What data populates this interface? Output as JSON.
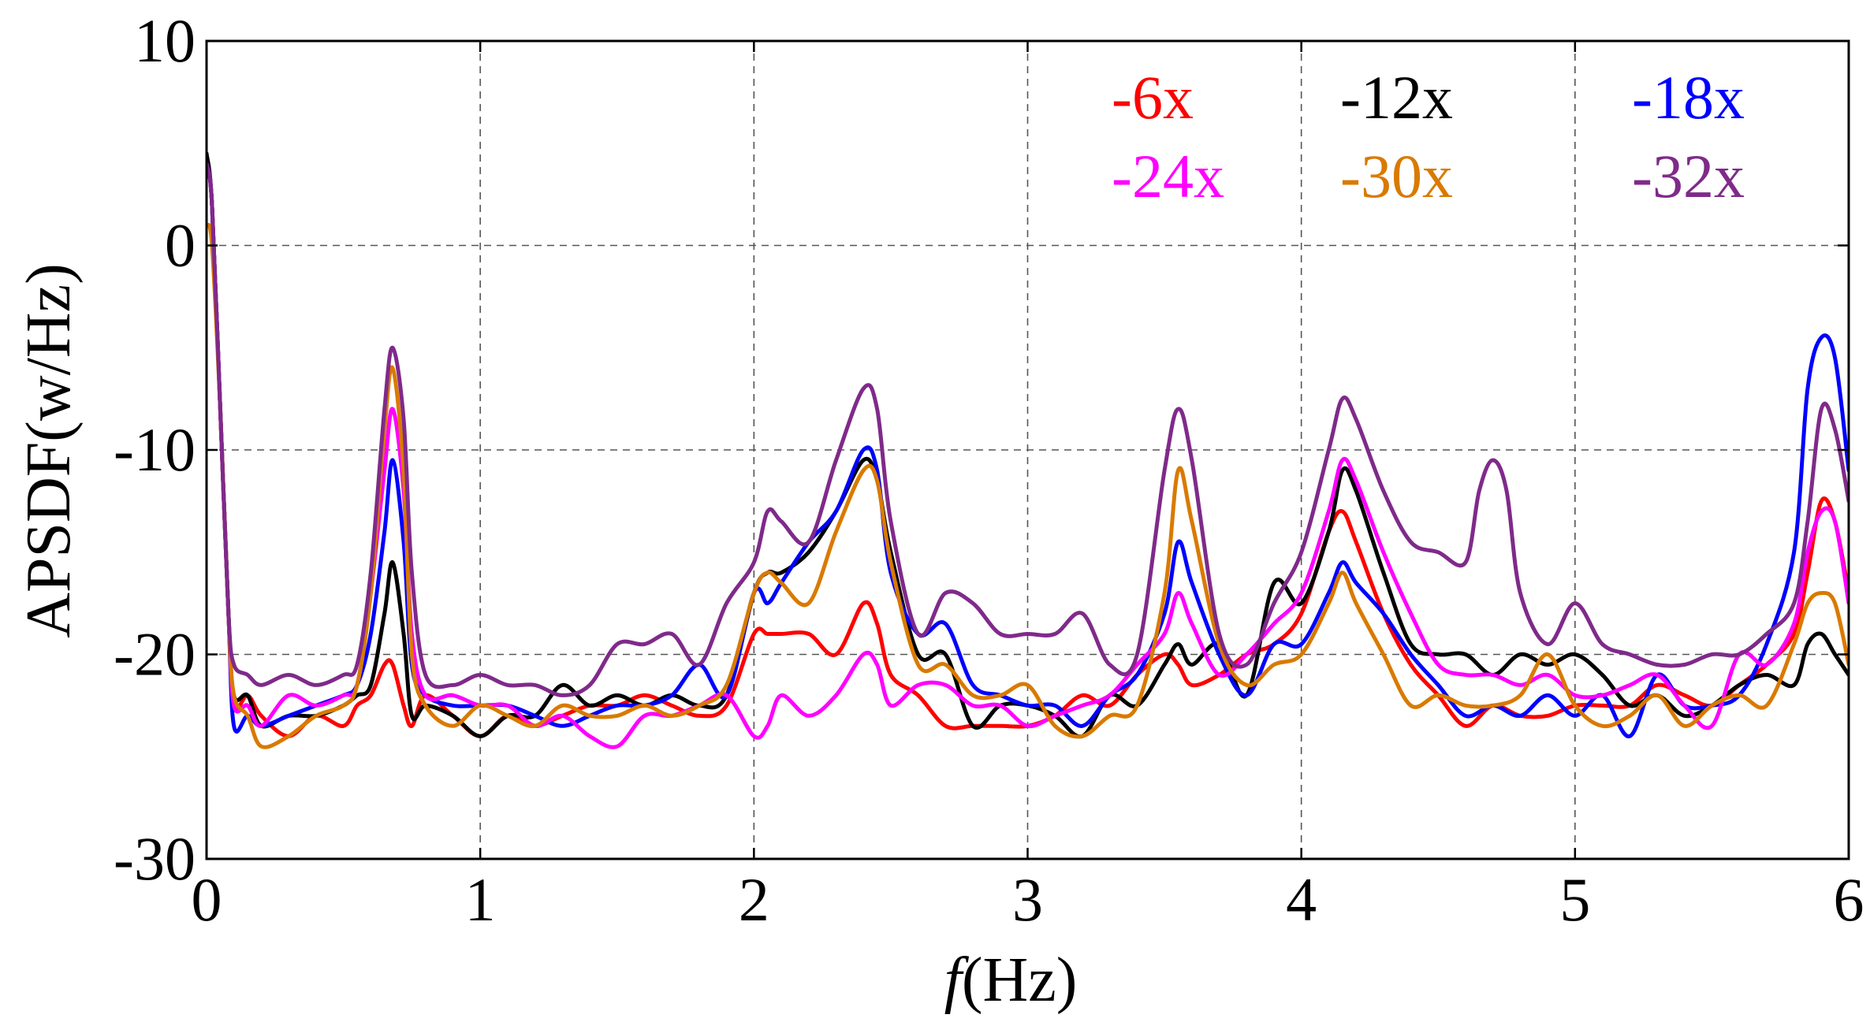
{
  "chart_data": {
    "type": "line",
    "title": "",
    "xlabel_prefix": "f",
    "xlabel_suffix": "(Hz)",
    "ylabel": "APSDF(w/Hz)",
    "xlim": [
      0,
      6
    ],
    "ylim": [
      -30,
      10
    ],
    "xticks": [
      0,
      1,
      2,
      3,
      4,
      5,
      6
    ],
    "yticks": [
      -30,
      -20,
      -10,
      0,
      10
    ],
    "xtick_labels": [
      "0",
      "1",
      "2",
      "3",
      "4",
      "5",
      "6"
    ],
    "ytick_labels": [
      "-30",
      "-20",
      "-10",
      "0",
      "10"
    ],
    "grid": true,
    "legend_placement": "top-right",
    "series": [
      {
        "name": "-6x",
        "color": "#ff0000",
        "x": [
          0.0,
          0.02,
          0.05,
          0.08,
          0.1,
          0.15,
          0.2,
          0.3,
          0.4,
          0.5,
          0.55,
          0.6,
          0.65,
          0.68,
          0.72,
          0.75,
          0.8,
          0.9,
          1.0,
          1.1,
          1.2,
          1.3,
          1.4,
          1.5,
          1.6,
          1.7,
          1.8,
          1.9,
          2.0,
          2.05,
          2.1,
          2.2,
          2.3,
          2.4,
          2.45,
          2.5,
          2.6,
          2.7,
          2.8,
          2.9,
          3.0,
          3.1,
          3.2,
          3.3,
          3.4,
          3.5,
          3.55,
          3.6,
          3.7,
          3.8,
          3.9,
          4.0,
          4.1,
          4.15,
          4.2,
          4.3,
          4.4,
          4.5,
          4.6,
          4.7,
          4.8,
          4.9,
          5.0,
          5.1,
          5.2,
          5.3,
          5.4,
          5.5,
          5.6,
          5.7,
          5.8,
          5.85,
          5.9,
          5.95,
          6.0
        ],
        "y": [
          4.0,
          2.0,
          -8.0,
          -18.0,
          -22.5,
          -22.0,
          -23.0,
          -24.0,
          -23.0,
          -23.5,
          -22.5,
          -22.0,
          -20.5,
          -20.5,
          -22.5,
          -23.5,
          -22.0,
          -23.0,
          -24.0,
          -23.0,
          -23.5,
          -23.0,
          -22.5,
          -22.5,
          -22.0,
          -22.5,
          -23.0,
          -22.5,
          -19.0,
          -19.0,
          -19.0,
          -19.0,
          -20.0,
          -17.5,
          -18.5,
          -21.0,
          -22.0,
          -23.5,
          -23.5,
          -23.5,
          -23.5,
          -23.0,
          -22.0,
          -22.5,
          -21.0,
          -20.0,
          -20.5,
          -21.5,
          -21.0,
          -20.0,
          -19.5,
          -18.0,
          -14.0,
          -13.0,
          -14.5,
          -18.0,
          -20.5,
          -22.0,
          -23.5,
          -22.5,
          -23.0,
          -23.0,
          -22.5,
          -22.5,
          -22.5,
          -21.5,
          -22.0,
          -22.5,
          -21.5,
          -20.5,
          -19.0,
          -16.0,
          -12.5,
          -13.5,
          -17.0
        ]
      },
      {
        "name": "-12x",
        "color": "#000000",
        "x": [
          0.0,
          0.02,
          0.05,
          0.08,
          0.1,
          0.15,
          0.2,
          0.3,
          0.4,
          0.5,
          0.55,
          0.6,
          0.65,
          0.68,
          0.72,
          0.75,
          0.8,
          0.9,
          1.0,
          1.1,
          1.2,
          1.3,
          1.4,
          1.5,
          1.6,
          1.7,
          1.8,
          1.9,
          2.0,
          2.05,
          2.1,
          2.2,
          2.3,
          2.4,
          2.45,
          2.5,
          2.6,
          2.7,
          2.8,
          2.9,
          3.0,
          3.1,
          3.2,
          3.3,
          3.4,
          3.5,
          3.55,
          3.6,
          3.7,
          3.8,
          3.9,
          4.0,
          4.1,
          4.15,
          4.2,
          4.3,
          4.4,
          4.5,
          4.6,
          4.7,
          4.8,
          4.9,
          5.0,
          5.1,
          5.2,
          5.3,
          5.4,
          5.5,
          5.6,
          5.7,
          5.8,
          5.85,
          5.9,
          5.95,
          6.0
        ],
        "y": [
          4.5,
          2.0,
          -8.0,
          -18.0,
          -22.0,
          -22.0,
          -23.5,
          -23.0,
          -23.0,
          -22.5,
          -22.0,
          -21.5,
          -18.0,
          -15.5,
          -19.0,
          -23.0,
          -22.5,
          -23.0,
          -24.0,
          -23.0,
          -23.0,
          -21.5,
          -22.5,
          -22.0,
          -22.5,
          -22.0,
          -22.5,
          -22.0,
          -17.0,
          -16.0,
          -16.0,
          -15.0,
          -13.0,
          -10.5,
          -11.5,
          -15.0,
          -20.0,
          -20.0,
          -23.5,
          -22.5,
          -22.5,
          -23.0,
          -24.0,
          -22.0,
          -22.5,
          -20.5,
          -19.5,
          -20.5,
          -19.5,
          -22.0,
          -16.5,
          -17.5,
          -14.0,
          -11.0,
          -12.0,
          -16.0,
          -19.5,
          -20.0,
          -20.0,
          -21.0,
          -20.0,
          -20.5,
          -20.0,
          -21.0,
          -22.5,
          -22.0,
          -23.0,
          -22.5,
          -21.5,
          -21.0,
          -21.5,
          -19.5,
          -19.0,
          -20.0,
          -21.0
        ]
      },
      {
        "name": "-18x",
        "color": "#0000ff",
        "x": [
          0.0,
          0.02,
          0.05,
          0.08,
          0.1,
          0.15,
          0.2,
          0.3,
          0.4,
          0.5,
          0.55,
          0.6,
          0.65,
          0.68,
          0.72,
          0.75,
          0.8,
          0.9,
          1.0,
          1.1,
          1.2,
          1.3,
          1.4,
          1.5,
          1.6,
          1.7,
          1.8,
          1.9,
          2.0,
          2.05,
          2.1,
          2.2,
          2.3,
          2.4,
          2.45,
          2.5,
          2.6,
          2.7,
          2.8,
          2.9,
          3.0,
          3.1,
          3.2,
          3.3,
          3.4,
          3.5,
          3.55,
          3.6,
          3.7,
          3.8,
          3.9,
          4.0,
          4.1,
          4.15,
          4.2,
          4.3,
          4.4,
          4.5,
          4.6,
          4.7,
          4.8,
          4.9,
          5.0,
          5.1,
          5.2,
          5.3,
          5.4,
          5.5,
          5.6,
          5.7,
          5.8,
          5.85,
          5.9,
          5.95,
          6.0
        ],
        "y": [
          4.0,
          2.0,
          -8.0,
          -18.0,
          -23.5,
          -23.0,
          -23.5,
          -23.0,
          -22.5,
          -22.0,
          -21.5,
          -19.0,
          -14.0,
          -10.5,
          -14.5,
          -20.5,
          -22.0,
          -22.5,
          -22.5,
          -22.5,
          -23.0,
          -23.5,
          -23.0,
          -22.5,
          -22.5,
          -22.0,
          -20.5,
          -22.0,
          -17.0,
          -17.5,
          -16.5,
          -14.5,
          -13.0,
          -10.0,
          -11.0,
          -16.0,
          -19.0,
          -18.5,
          -21.5,
          -22.0,
          -22.5,
          -22.5,
          -23.5,
          -22.0,
          -21.0,
          -18.0,
          -14.5,
          -16.5,
          -20.0,
          -22.0,
          -19.5,
          -19.5,
          -17.0,
          -15.5,
          -16.5,
          -18.0,
          -20.0,
          -21.5,
          -23.0,
          -22.5,
          -23.0,
          -22.0,
          -23.0,
          -22.0,
          -24.0,
          -21.0,
          -22.5,
          -22.5,
          -22.0,
          -19.5,
          -15.0,
          -7.0,
          -4.5,
          -5.5,
          -11.0
        ]
      },
      {
        "name": "-24x",
        "color": "#ff00ff",
        "x": [
          0.0,
          0.02,
          0.05,
          0.08,
          0.1,
          0.15,
          0.2,
          0.3,
          0.4,
          0.5,
          0.55,
          0.6,
          0.65,
          0.68,
          0.72,
          0.75,
          0.8,
          0.9,
          1.0,
          1.1,
          1.2,
          1.3,
          1.4,
          1.5,
          1.6,
          1.7,
          1.8,
          1.9,
          2.0,
          2.05,
          2.1,
          2.2,
          2.3,
          2.4,
          2.45,
          2.5,
          2.6,
          2.7,
          2.8,
          2.9,
          3.0,
          3.1,
          3.2,
          3.3,
          3.4,
          3.5,
          3.55,
          3.6,
          3.7,
          3.8,
          3.9,
          4.0,
          4.1,
          4.15,
          4.2,
          4.3,
          4.4,
          4.5,
          4.6,
          4.7,
          4.8,
          4.9,
          5.0,
          5.1,
          5.2,
          5.3,
          5.4,
          5.5,
          5.6,
          5.7,
          5.8,
          5.85,
          5.9,
          5.95,
          6.0
        ],
        "y": [
          4.0,
          2.0,
          -8.0,
          -18.0,
          -22.5,
          -22.5,
          -23.5,
          -22.0,
          -22.5,
          -22.0,
          -21.5,
          -17.0,
          -11.0,
          -8.0,
          -12.0,
          -19.0,
          -22.0,
          -22.0,
          -22.5,
          -22.5,
          -23.5,
          -23.0,
          -24.0,
          -24.5,
          -23.0,
          -23.0,
          -22.5,
          -22.0,
          -24.0,
          -23.5,
          -22.0,
          -23.0,
          -22.0,
          -20.0,
          -20.5,
          -22.5,
          -21.5,
          -21.5,
          -22.5,
          -22.5,
          -23.5,
          -23.0,
          -22.5,
          -22.0,
          -20.5,
          -19.0,
          -17.0,
          -18.5,
          -21.0,
          -20.0,
          -18.5,
          -17.0,
          -13.0,
          -10.5,
          -11.5,
          -15.0,
          -18.0,
          -20.5,
          -21.0,
          -21.0,
          -21.5,
          -21.0,
          -22.0,
          -22.0,
          -21.5,
          -21.0,
          -22.5,
          -23.5,
          -20.0,
          -20.5,
          -18.5,
          -15.0,
          -13.0,
          -13.5,
          -17.5
        ]
      },
      {
        "name": "-30x",
        "color": "#d97a00",
        "x": [
          0.0,
          0.02,
          0.05,
          0.08,
          0.1,
          0.15,
          0.2,
          0.3,
          0.4,
          0.5,
          0.55,
          0.6,
          0.65,
          0.68,
          0.72,
          0.75,
          0.8,
          0.9,
          1.0,
          1.1,
          1.2,
          1.3,
          1.4,
          1.5,
          1.6,
          1.7,
          1.8,
          1.9,
          2.0,
          2.05,
          2.1,
          2.2,
          2.3,
          2.4,
          2.45,
          2.5,
          2.6,
          2.7,
          2.8,
          2.9,
          3.0,
          3.1,
          3.2,
          3.3,
          3.4,
          3.5,
          3.55,
          3.6,
          3.7,
          3.8,
          3.9,
          4.0,
          4.1,
          4.15,
          4.2,
          4.3,
          4.4,
          4.5,
          4.6,
          4.7,
          4.8,
          4.9,
          5.0,
          5.1,
          5.2,
          5.3,
          5.4,
          5.5,
          5.6,
          5.7,
          5.8,
          5.85,
          5.9,
          5.95,
          6.0
        ],
        "y": [
          1.0,
          0.0,
          -8.0,
          -18.0,
          -22.0,
          -23.0,
          -24.5,
          -24.0,
          -23.0,
          -22.5,
          -21.5,
          -17.0,
          -9.0,
          -6.0,
          -11.0,
          -20.0,
          -22.5,
          -23.5,
          -22.5,
          -23.0,
          -23.5,
          -22.5,
          -23.0,
          -23.0,
          -22.5,
          -23.0,
          -22.5,
          -21.5,
          -17.0,
          -16.0,
          -16.5,
          -17.5,
          -14.0,
          -11.0,
          -11.5,
          -15.5,
          -20.5,
          -20.5,
          -22.0,
          -22.0,
          -21.5,
          -23.5,
          -24.0,
          -23.0,
          -22.5,
          -17.0,
          -11.0,
          -13.5,
          -19.5,
          -21.5,
          -20.5,
          -20.0,
          -17.5,
          -16.0,
          -17.5,
          -20.0,
          -22.5,
          -22.0,
          -22.5,
          -22.5,
          -22.0,
          -20.0,
          -22.5,
          -23.5,
          -23.0,
          -22.0,
          -23.5,
          -22.5,
          -22.0,
          -22.5,
          -19.5,
          -17.5,
          -17.0,
          -17.5,
          -20.5
        ]
      },
      {
        "name": "-32x",
        "color": "#7f2a8a",
        "x": [
          0.0,
          0.02,
          0.05,
          0.08,
          0.1,
          0.15,
          0.2,
          0.3,
          0.4,
          0.5,
          0.55,
          0.6,
          0.65,
          0.68,
          0.72,
          0.75,
          0.8,
          0.9,
          1.0,
          1.1,
          1.2,
          1.3,
          1.4,
          1.5,
          1.6,
          1.7,
          1.8,
          1.9,
          2.0,
          2.05,
          2.1,
          2.2,
          2.3,
          2.4,
          2.45,
          2.5,
          2.6,
          2.7,
          2.8,
          2.9,
          3.0,
          3.1,
          3.2,
          3.3,
          3.4,
          3.5,
          3.55,
          3.6,
          3.7,
          3.8,
          3.9,
          4.0,
          4.1,
          4.15,
          4.2,
          4.3,
          4.4,
          4.5,
          4.6,
          4.65,
          4.7,
          4.75,
          4.8,
          4.9,
          5.0,
          5.1,
          5.2,
          5.3,
          5.4,
          5.5,
          5.6,
          5.7,
          5.8,
          5.85,
          5.9,
          5.95,
          6.0
        ],
        "y": [
          4.0,
          2.0,
          -8.0,
          -18.0,
          -20.5,
          -21.0,
          -21.5,
          -21.0,
          -21.5,
          -21.0,
          -20.5,
          -16.0,
          -8.0,
          -5.0,
          -8.5,
          -16.0,
          -21.0,
          -21.5,
          -21.0,
          -21.5,
          -21.5,
          -22.0,
          -21.5,
          -19.5,
          -19.5,
          -19.0,
          -20.5,
          -17.5,
          -15.5,
          -13.0,
          -13.5,
          -14.5,
          -10.5,
          -7.0,
          -8.0,
          -13.5,
          -19.0,
          -17.0,
          -17.5,
          -19.0,
          -19.0,
          -19.0,
          -18.0,
          -20.5,
          -20.0,
          -11.0,
          -8.0,
          -10.5,
          -19.0,
          -20.5,
          -17.5,
          -15.0,
          -10.0,
          -7.5,
          -8.5,
          -12.0,
          -14.5,
          -15.0,
          -15.5,
          -12.0,
          -10.5,
          -12.0,
          -17.0,
          -19.5,
          -17.5,
          -19.5,
          -20.0,
          -20.5,
          -20.5,
          -20.0,
          -20.0,
          -19.0,
          -17.5,
          -13.5,
          -8.0,
          -9.0,
          -12.5
        ]
      }
    ]
  }
}
